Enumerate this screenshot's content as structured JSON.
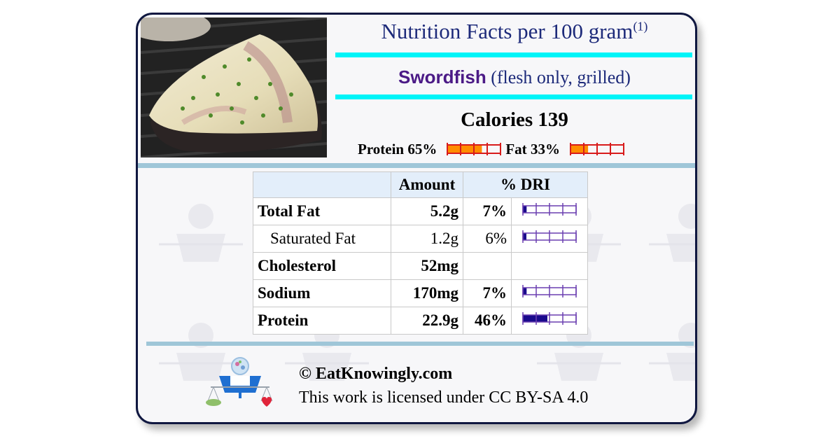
{
  "header": {
    "title": "Nutrition Facts per 100 gram",
    "footnote_mark": "(1)",
    "food_name": "Swordfish",
    "food_desc": "(flesh only, grilled)",
    "calories_label": "Calories",
    "calories_value": "139"
  },
  "macros": [
    {
      "label": "Protein",
      "percent_text": "65%",
      "fraction": 0.65
    },
    {
      "label": "Fat",
      "percent_text": "33%",
      "fraction": 0.33
    }
  ],
  "table": {
    "headers": [
      "",
      "Amount",
      "% DRI"
    ],
    "rows": [
      {
        "name": "Total Fat",
        "amount": "5.2g",
        "dri": "7%",
        "dri_fraction": 0.07,
        "sub": false
      },
      {
        "name": "Saturated Fat",
        "amount": "1.2g",
        "dri": "6%",
        "dri_fraction": 0.06,
        "sub": true
      },
      {
        "name": "Cholesterol",
        "amount": "52mg",
        "dri": "",
        "dri_fraction": null,
        "sub": false
      },
      {
        "name": "Sodium",
        "amount": "170mg",
        "dri": "7%",
        "dri_fraction": 0.07,
        "sub": false
      },
      {
        "name": "Protein",
        "amount": "22.9g",
        "dri": "46%",
        "dri_fraction": 0.46,
        "sub": false
      }
    ]
  },
  "footer": {
    "copyright": "© EatKnowingly.com",
    "license": "This work is licensed under CC BY-SA 4.0"
  },
  "colors": {
    "title_text": "#1d2a7a",
    "food_name": "#4b1a86",
    "cyan_rule": "#00f4f8",
    "macro_fill": "#ff8c00",
    "macro_border": "#d81b1b",
    "dri_fill": "#1a0a8c",
    "dri_border": "#6a3fb0"
  }
}
